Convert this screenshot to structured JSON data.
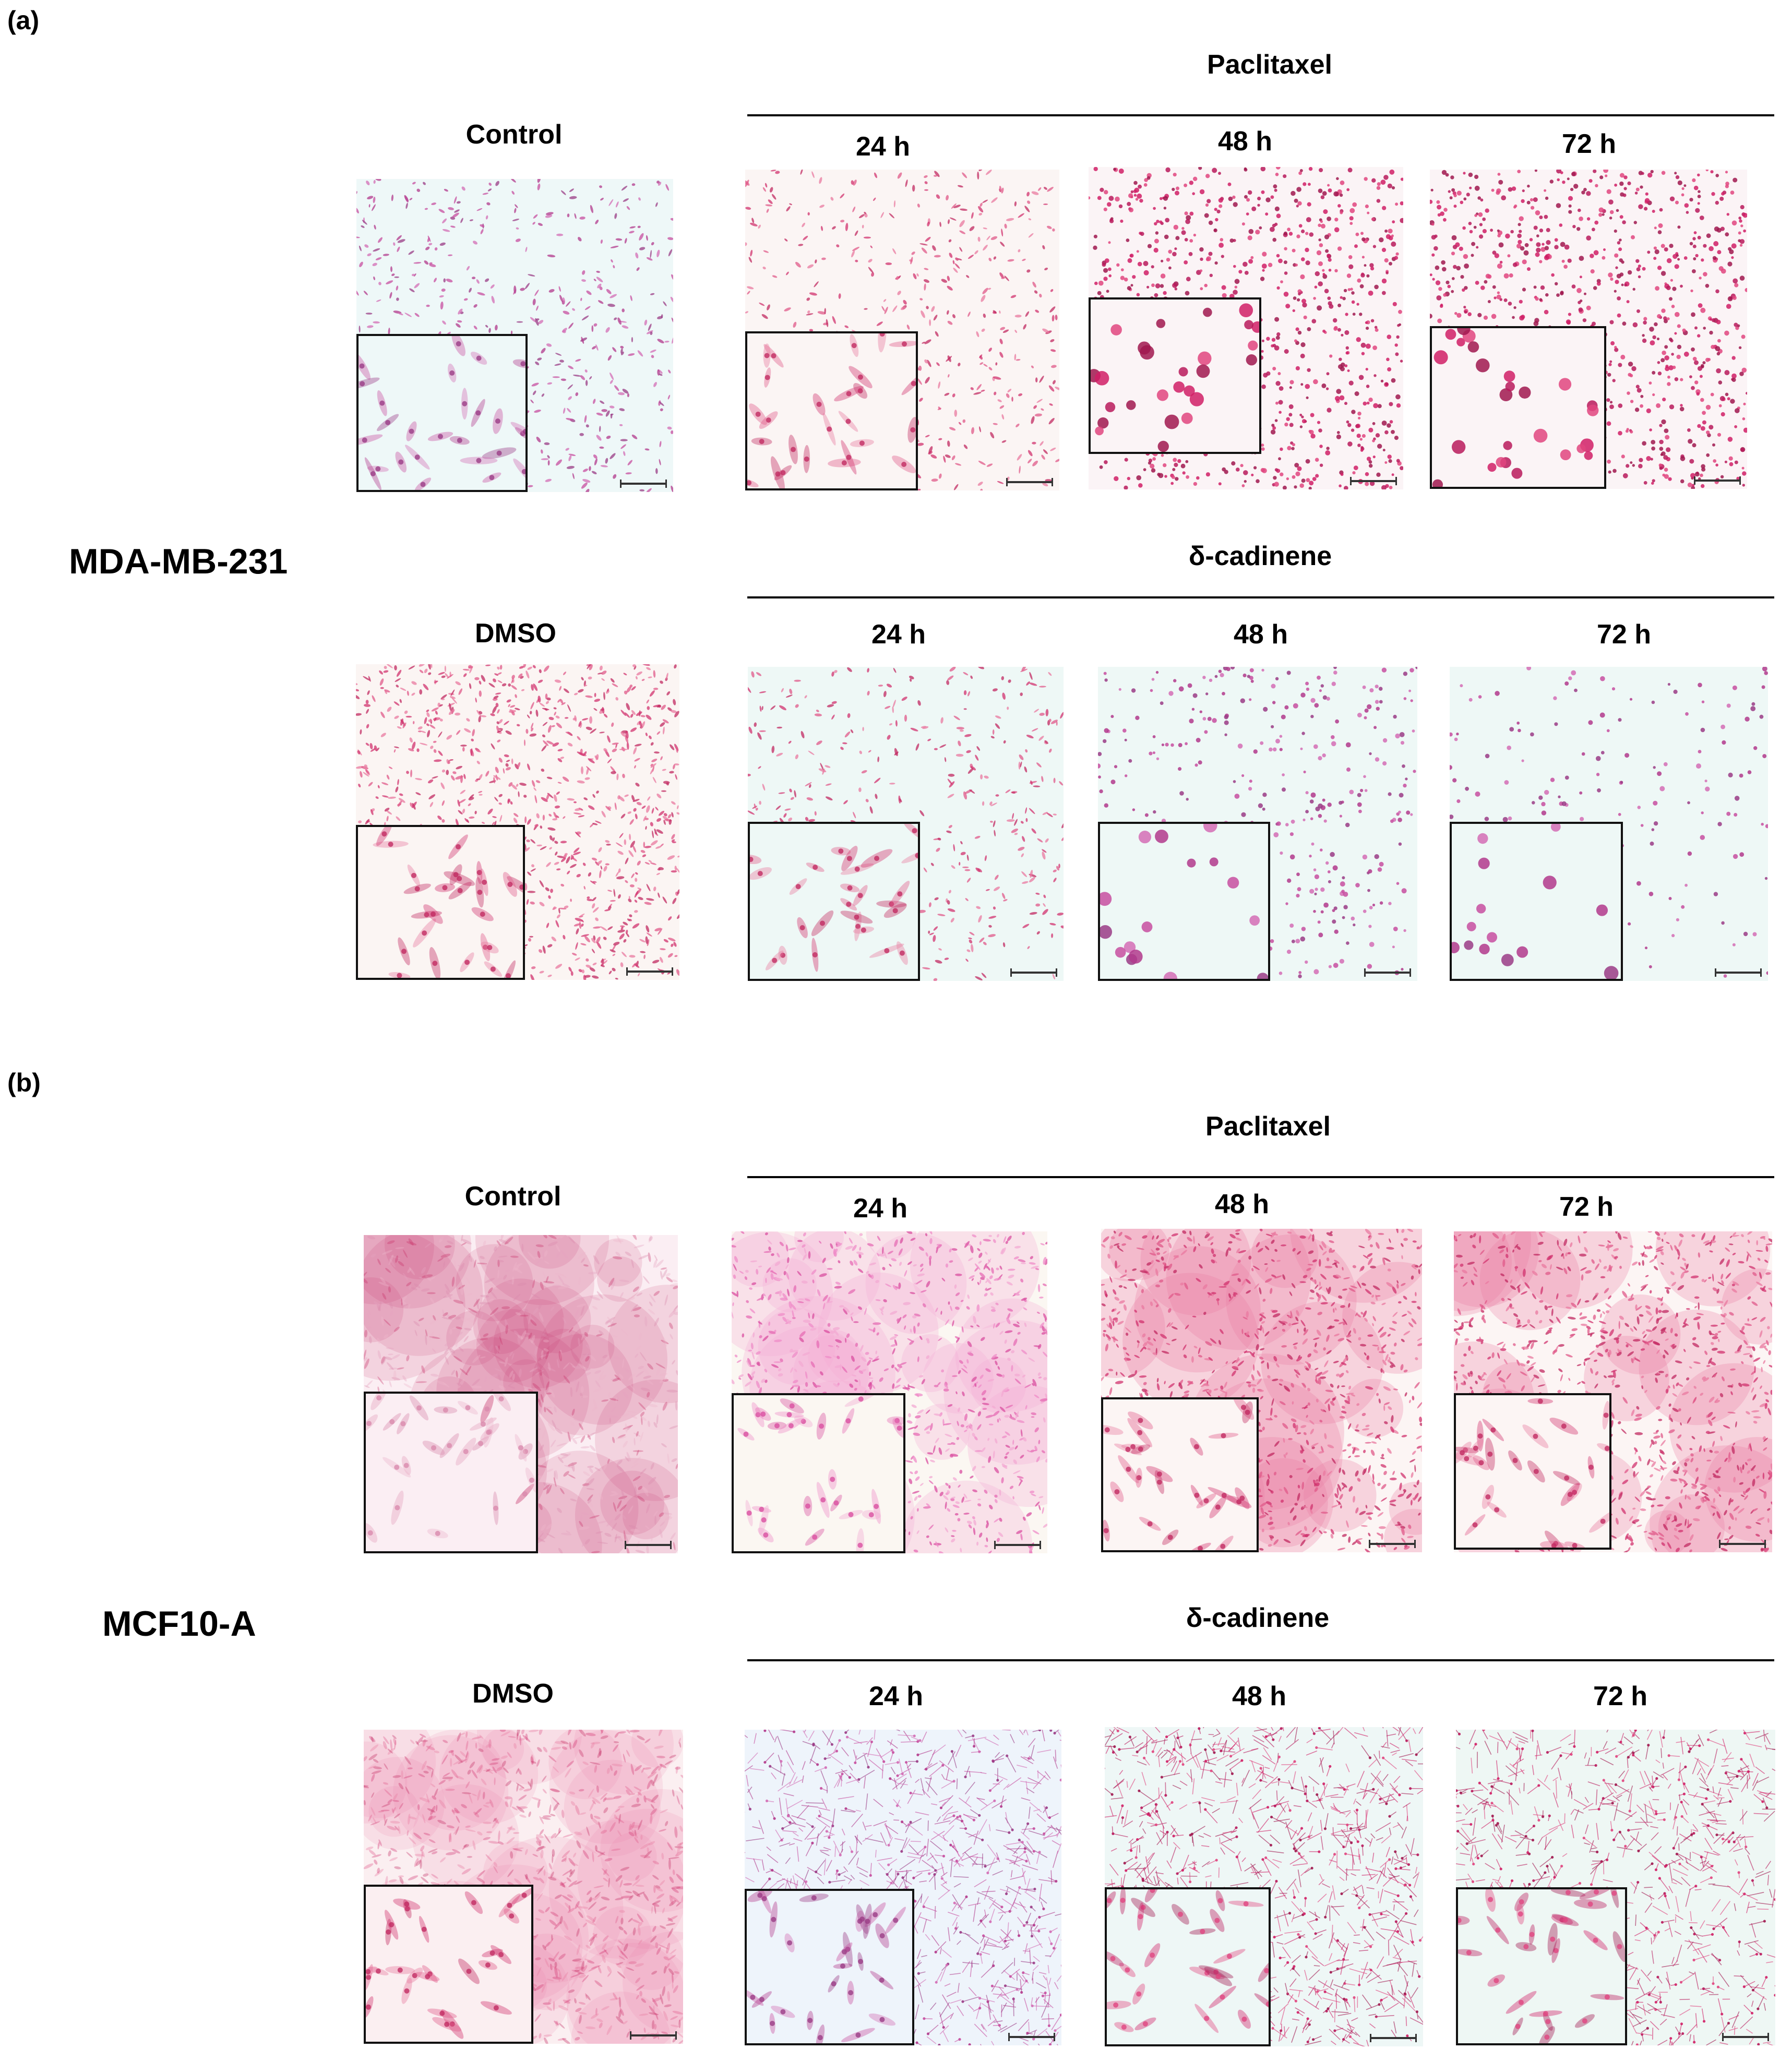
{
  "panels": [
    {
      "label": "(a)",
      "cell_line": "MDA-MB-231",
      "rows": [
        {
          "control_label": "Control",
          "treatment_label": "Paclitaxel",
          "timepoints": [
            "24 h",
            "48 h",
            "72 h"
          ]
        },
        {
          "control_label": "DMSO",
          "treatment_label": "δ-cadinene",
          "timepoints": [
            "24 h",
            "48 h",
            "72 h"
          ]
        }
      ]
    },
    {
      "label": "(b)",
      "cell_line": "MCF10-A",
      "rows": [
        {
          "control_label": "Control",
          "treatment_label": "Paclitaxel",
          "timepoints": [
            "24 h",
            "48 h",
            "72 h"
          ]
        },
        {
          "control_label": "DMSO",
          "treatment_label": "δ-cadinene",
          "timepoints": [
            "24 h",
            "48 h",
            "72 h"
          ]
        }
      ]
    }
  ],
  "colors": {
    "background": "#ffffff",
    "stain_magenta": "#d81b6a",
    "stain_pink": "#e879a8",
    "stain_dark": "#8e1f55",
    "field_pale": "#f4fbfb",
    "inset_border": "#111111"
  }
}
